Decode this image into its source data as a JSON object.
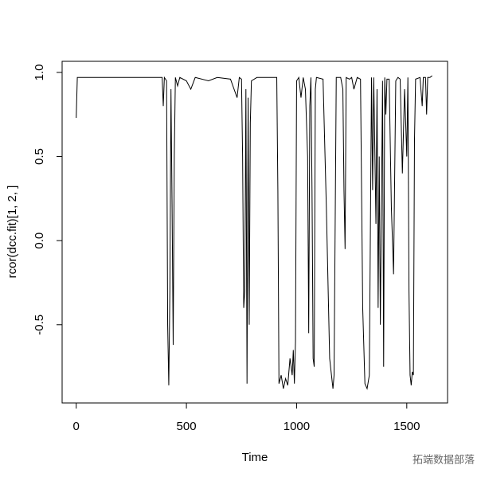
{
  "chart_data": {
    "type": "line",
    "x_label": "Time",
    "y_label": "rcor(dcc.fit)[1, 2, ]",
    "watermark": "拓端数据部落",
    "xlim": [
      -64,
      1685
    ],
    "ylim": [
      -0.965,
      1.066
    ],
    "xticks": [
      0,
      500,
      1000,
      1500
    ],
    "yticks": [
      -0.5,
      {
        "value": 0,
        "label": "0.0"
      },
      0.5,
      {
        "value": 1,
        "label": "1.0"
      }
    ],
    "series": [
      {
        "color": "#000000",
        "x": [
          0,
          5,
          390,
          395,
          400,
          410,
          415,
          420,
          425,
          430,
          435,
          440,
          445,
          450,
          460,
          470,
          500,
          520,
          540,
          600,
          640,
          700,
          730,
          740,
          750,
          755,
          760,
          765,
          770,
          775,
          780,
          785,
          790,
          795,
          820,
          900,
          910,
          915,
          920,
          930,
          940,
          950,
          960,
          970,
          980,
          985,
          990,
          995,
          1000,
          1010,
          1020,
          1030,
          1040,
          1050,
          1055,
          1060,
          1065,
          1070,
          1075,
          1080,
          1085,
          1090,
          1120,
          1135,
          1150,
          1165,
          1170,
          1180,
          1200,
          1210,
          1215,
          1220,
          1225,
          1240,
          1250,
          1260,
          1275,
          1290,
          1300,
          1310,
          1320,
          1330,
          1340,
          1345,
          1350,
          1360,
          1365,
          1370,
          1375,
          1380,
          1385,
          1390,
          1395,
          1400,
          1405,
          1410,
          1420,
          1430,
          1440,
          1450,
          1460,
          1470,
          1480,
          1490,
          1500,
          1505,
          1510,
          1515,
          1520,
          1525,
          1530,
          1535,
          1540,
          1560,
          1570,
          1575,
          1585,
          1590,
          1595,
          1605,
          1615
        ],
        "values": [
          0.73,
          0.97,
          0.97,
          0.8,
          0.97,
          0.95,
          -0.5,
          -0.86,
          -0.3,
          0.9,
          0.2,
          -0.62,
          0.5,
          0.97,
          0.92,
          0.97,
          0.95,
          0.9,
          0.97,
          0.95,
          0.97,
          0.96,
          0.85,
          0.97,
          0.96,
          0.5,
          -0.4,
          -0.3,
          0.9,
          -0.85,
          0.85,
          -0.5,
          0.7,
          0.95,
          0.97,
          0.97,
          0.97,
          0.3,
          -0.85,
          -0.8,
          -0.88,
          -0.82,
          -0.86,
          -0.7,
          -0.8,
          -0.65,
          -0.85,
          -0.6,
          0.95,
          0.97,
          0.85,
          0.97,
          0.9,
          0.5,
          -0.55,
          0.8,
          0.97,
          0.3,
          -0.7,
          -0.75,
          0.9,
          0.97,
          0.96,
          0.2,
          -0.7,
          -0.88,
          -0.8,
          0.97,
          0.97,
          0.9,
          0.3,
          -0.05,
          0.97,
          0.96,
          0.97,
          0.9,
          0.97,
          0.96,
          -0.4,
          -0.85,
          -0.88,
          -0.8,
          0.97,
          0.3,
          0.97,
          0.1,
          0.9,
          -0.4,
          0.5,
          -0.5,
          0.2,
          0.95,
          -0.75,
          0.97,
          0.75,
          0.96,
          0.96,
          0.2,
          -0.2,
          0.95,
          0.97,
          0.96,
          0.4,
          0.9,
          0.5,
          0.97,
          -0.3,
          -0.8,
          -0.86,
          -0.78,
          -0.8,
          0.6,
          0.96,
          0.97,
          0.8,
          0.97,
          0.97,
          0.75,
          0.97,
          0.97,
          0.98
        ]
      }
    ]
  }
}
